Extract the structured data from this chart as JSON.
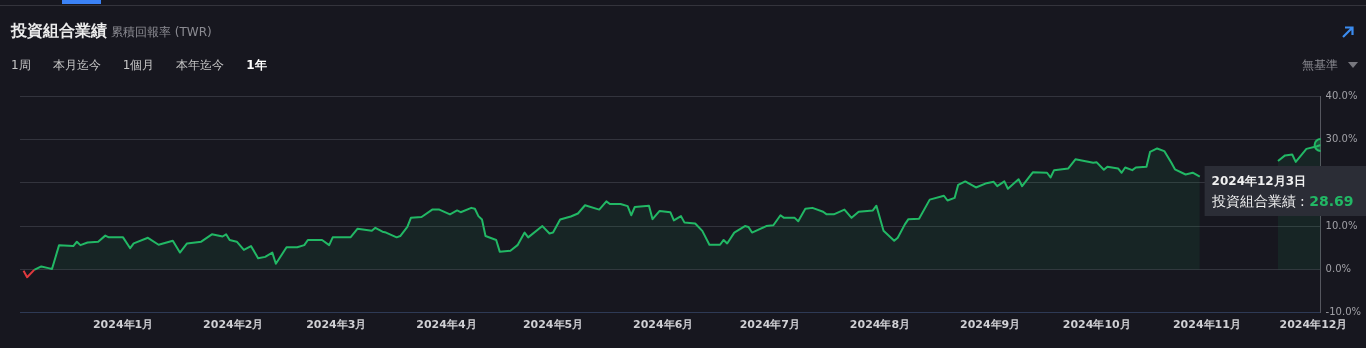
{
  "chart_data": {
    "type": "area",
    "title": "投資組合業績",
    "subtitle": "累積回報率 (TWR)",
    "annotations": [
      "1周",
      "本月迄今",
      "1個月",
      "本年迄今",
      "1年",
      "無基準",
      ":",
      {
        "text": "2024年12月3日",
        "x": "2024-12-03",
        "y": 28.69
      }
    ],
    "series": [
      {
        "type": "line",
        "color": "#e0393e",
        "x": [
          "2023-12-04",
          "2023-12-05",
          "2023-12-07"
        ],
        "values": [
          -0.3,
          -1.8,
          -0.1
        ]
      },
      {
        "name": "投資組合業績",
        "type": "area",
        "color": "#22b865",
        "x": [
          "2023-12-07",
          "2023-12-08",
          "2023-12-09",
          "2023-12-11",
          "2023-12-12",
          "2023-12-14",
          "2023-12-18",
          "2023-12-19",
          "2023-12-20",
          "2023-12-22",
          "2023-12-25",
          "2023-12-27",
          "2023-12-28",
          "2024-01-01",
          "2024-01-03",
          "2024-01-04",
          "2024-01-08",
          "2024-01-11",
          "2024-01-15",
          "2024-01-17",
          "2024-01-19",
          "2024-01-23",
          "2024-01-26",
          "2024-01-29",
          "2024-01-30",
          "2024-01-31",
          "2024-02-02",
          "2024-02-04",
          "2024-02-06",
          "2024-02-08",
          "2024-02-10",
          "2024-02-12",
          "2024-02-13",
          "2024-02-16",
          "2024-02-19",
          "2024-02-21",
          "2024-02-22",
          "2024-02-26",
          "2024-02-28",
          "2024-02-29",
          "2024-03-05",
          "2024-03-07",
          "2024-03-11",
          "2024-03-12",
          "2024-03-14",
          "2024-03-15",
          "2024-03-18",
          "2024-03-19",
          "2024-03-21",
          "2024-03-22",
          "2024-03-25",
          "2024-03-28",
          "2024-03-30",
          "2024-04-02",
          "2024-04-04",
          "2024-04-05",
          "2024-04-08",
          "2024-04-09",
          "2024-04-10",
          "2024-04-11",
          "2024-04-12",
          "2024-04-15",
          "2024-04-16",
          "2024-04-19",
          "2024-04-21",
          "2024-04-23",
          "2024-04-24",
          "2024-04-28",
          "2024-04-30",
          "2024-05-01",
          "2024-05-03",
          "2024-05-06",
          "2024-05-08",
          "2024-05-10",
          "2024-05-14",
          "2024-05-16",
          "2024-05-17",
          "2024-05-20",
          "2024-05-22",
          "2024-05-23",
          "2024-05-24",
          "2024-05-28",
          "2024-05-29",
          "2024-05-31",
          "2024-06-03",
          "2024-06-04",
          "2024-06-06",
          "2024-06-07",
          "2024-06-10",
          "2024-06-12",
          "2024-06-14",
          "2024-06-17",
          "2024-06-18",
          "2024-06-19",
          "2024-06-21",
          "2024-06-24",
          "2024-06-25",
          "2024-06-26",
          "2024-06-30",
          "2024-07-02",
          "2024-07-04",
          "2024-07-05",
          "2024-07-08",
          "2024-07-09",
          "2024-07-11",
          "2024-07-13",
          "2024-07-16",
          "2024-07-17",
          "2024-07-19",
          "2024-07-22",
          "2024-07-24",
          "2024-07-26",
          "2024-07-30",
          "2024-07-31",
          "2024-08-02",
          "2024-08-05",
          "2024-08-06",
          "2024-08-08",
          "2024-08-09",
          "2024-08-12",
          "2024-08-15",
          "2024-08-19",
          "2024-08-20",
          "2024-08-22",
          "2024-08-23",
          "2024-08-25",
          "2024-08-28",
          "2024-08-31",
          "2024-09-02",
          "2024-09-03",
          "2024-09-05",
          "2024-09-06",
          "2024-09-09",
          "2024-09-10",
          "2024-09-13",
          "2024-09-17",
          "2024-09-18",
          "2024-09-19",
          "2024-09-23",
          "2024-09-25",
          "2024-09-30",
          "2024-10-01",
          "2024-10-03",
          "2024-10-04",
          "2024-10-07",
          "2024-10-08",
          "2024-10-09",
          "2024-10-11",
          "2024-10-12",
          "2024-10-15",
          "2024-10-16",
          "2024-10-18",
          "2024-10-20",
          "2024-10-22",
          "2024-10-23",
          "2024-10-26",
          "2024-10-28",
          "2024-10-30",
          "2024-11-12",
          "2024-11-21",
          "2024-11-23",
          "2024-11-25",
          "2024-11-26",
          "2024-11-29",
          "2024-12-02",
          "2024-12-03"
        ],
        "values": [
          -0.1,
          0.3,
          0.7,
          0.3,
          0.1,
          5.6,
          5.4,
          6.4,
          5.6,
          6.2,
          6.4,
          7.8,
          7.4,
          7.4,
          4.9,
          6.0,
          7.3,
          5.7,
          6.6,
          3.9,
          6.0,
          6.4,
          8.1,
          7.6,
          8.1,
          6.8,
          6.4,
          4.5,
          5.4,
          2.6,
          2.9,
          3.9,
          1.3,
          5.1,
          5.1,
          5.6,
          6.8,
          6.8,
          5.6,
          7.4,
          7.4,
          9.4,
          8.9,
          9.6,
          8.7,
          8.5,
          7.4,
          7.7,
          9.8,
          11.9,
          12.1,
          13.8,
          13.8,
          12.7,
          13.6,
          13.2,
          14.2,
          14.0,
          12.3,
          11.5,
          7.7,
          6.8,
          4.1,
          4.3,
          5.6,
          8.5,
          7.4,
          10.0,
          8.3,
          8.5,
          11.5,
          12.2,
          12.9,
          14.8,
          13.8,
          15.7,
          15.1,
          15.1,
          14.6,
          12.5,
          14.4,
          14.7,
          11.6,
          13.5,
          13.2,
          11.3,
          12.3,
          10.8,
          10.6,
          8.9,
          5.7,
          5.7,
          6.8,
          6.0,
          8.5,
          10.0,
          9.8,
          8.5,
          10.0,
          10.2,
          12.5,
          11.9,
          11.9,
          11.1,
          14.0,
          14.2,
          13.3,
          12.7,
          12.7,
          13.8,
          11.9,
          13.3,
          13.6,
          14.7,
          8.9,
          6.6,
          7.3,
          10.4,
          11.6,
          11.7,
          16.1,
          17.0,
          15.9,
          16.5,
          19.5,
          20.3,
          18.9,
          19.9,
          20.2,
          19.2,
          20.3,
          18.6,
          20.8,
          19.2,
          22.4,
          22.3,
          21.2,
          22.9,
          23.3,
          25.4,
          24.6,
          24.7,
          23.0,
          23.7,
          23.3,
          22.3,
          23.5,
          22.9,
          23.5,
          23.7,
          27.1,
          27.9,
          27.3,
          24.6,
          23.1,
          21.9,
          22.3,
          21.4,
          null,
          25.0,
          26.3,
          26.5,
          24.8,
          27.8,
          28.4,
          28.69
        ],
        "value_labels": [
          null,
          null,
          null,
          null,
          null,
          null,
          null,
          null,
          null,
          null,
          null,
          null,
          null,
          null,
          null,
          null,
          null,
          null,
          null,
          null,
          null,
          null,
          null,
          null,
          null,
          null,
          null,
          null,
          null,
          null,
          null,
          null,
          null,
          null,
          null,
          null,
          null,
          null,
          null,
          null,
          null,
          null,
          null,
          null,
          null,
          null,
          null,
          null,
          null,
          null,
          null,
          null,
          null,
          null,
          null,
          null,
          null,
          null,
          null,
          null,
          null,
          null,
          null,
          null,
          null,
          null,
          null,
          null,
          null,
          null,
          null,
          null,
          null,
          null,
          null,
          null,
          null,
          null,
          null,
          null,
          null,
          null,
          null,
          null,
          null,
          null,
          null,
          null,
          null,
          null,
          null,
          null,
          null,
          null,
          null,
          null,
          null,
          null,
          null,
          null,
          null,
          null,
          null,
          null,
          null,
          null,
          null,
          null,
          null,
          null,
          null,
          null,
          null,
          null,
          null,
          null,
          null,
          null,
          null,
          null,
          null,
          null,
          null,
          null,
          null,
          null,
          null,
          null,
          null,
          null,
          null,
          null,
          null,
          null,
          null,
          null,
          null,
          null,
          null,
          null,
          null,
          null,
          null,
          null,
          null,
          null,
          null,
          null,
          null,
          null,
          null,
          null,
          null,
          null,
          null,
          null,
          null,
          null,
          null,
          null,
          null,
          null,
          null,
          null,
          null,
          "28.69"
        ]
      }
    ],
    "xlim": [
      "2023-12-03",
      "2024-12-03"
    ],
    "xticks": [
      {
        "value": "2024-01-01",
        "label": "2024年1月"
      },
      {
        "value": "2024-02-01",
        "label": "2024年2月"
      },
      {
        "value": "2024-03-01",
        "label": "2024年3月"
      },
      {
        "value": "2024-04-01",
        "label": "2024年4月"
      },
      {
        "value": "2024-05-01",
        "label": "2024年5月"
      },
      {
        "value": "2024-06-01",
        "label": "2024年6月"
      },
      {
        "value": "2024-07-01",
        "label": "2024年7月"
      },
      {
        "value": "2024-08-01",
        "label": "2024年8月"
      },
      {
        "value": "2024-09-01",
        "label": "2024年9月"
      },
      {
        "value": "2024-10-01",
        "label": "2024年10月"
      },
      {
        "value": "2024-11-01",
        "label": "2024年11月"
      },
      {
        "value": "2024-12-01",
        "label": "2024年12月"
      }
    ],
    "ylim": [
      -10,
      40
    ],
    "yticks": [
      {
        "value": -10,
        "label": "-10.0%"
      },
      {
        "value": 0,
        "label": "0.0%"
      },
      {
        "value": 10,
        "label": "10.0%"
      },
      {
        "value": 20,
        "label": null
      },
      {
        "value": 30,
        "label": "30.0%"
      },
      {
        "value": 40,
        "label": "40.0%"
      }
    ],
    "grid": "y",
    "legend": false
  }
}
